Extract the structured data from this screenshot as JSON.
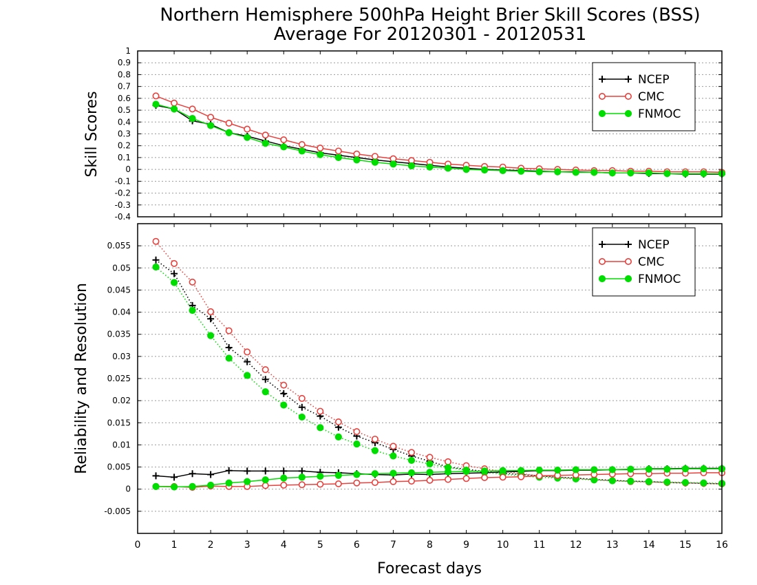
{
  "figure": {
    "title_line1": "Northern Hemisphere 500hPa Height Brier Skill Scores (BSS)",
    "title_line2": "Average For 20120301 - 20120531",
    "xlabel": "Forecast days"
  },
  "colors": {
    "NCEP": "#000000",
    "CMC": "#e8403c",
    "FNMOC": "#00dd00",
    "grid": "#999999"
  },
  "chart_data": [
    {
      "type": "line",
      "panel": "top",
      "ylabel": "Skill Scores",
      "xlim": [
        0,
        16
      ],
      "ylim": [
        -0.4,
        1
      ],
      "xticks": [
        0,
        1,
        2,
        3,
        4,
        5,
        6,
        7,
        8,
        9,
        10,
        11,
        12,
        13,
        14,
        15,
        16
      ],
      "yticks": [
        -0.4,
        -0.3,
        -0.2,
        -0.1,
        0,
        0.1,
        0.2,
        0.3,
        0.4,
        0.5,
        0.6,
        0.7,
        0.8,
        0.9,
        1
      ],
      "ytick_labels": [
        "-0.4",
        "-0.3",
        "-0.2",
        "-0.1",
        "0",
        "0.1",
        "0.2",
        "0.3",
        "0.4",
        "0.5",
        "0.6",
        "0.7",
        "0.8",
        "0.9",
        "1"
      ],
      "grid": true,
      "legend": "top-right",
      "x": [
        0.5,
        1,
        1.5,
        2,
        2.5,
        3,
        3.5,
        4,
        4.5,
        5,
        5.5,
        6,
        6.5,
        7,
        7.5,
        8,
        8.5,
        9,
        9.5,
        10,
        10.5,
        11,
        11.5,
        12,
        12.5,
        13,
        13.5,
        14,
        14.5,
        15,
        15.5,
        16
      ],
      "series": [
        {
          "name": "NCEP",
          "style": "solid",
          "marker": "plus",
          "values": [
            0.54,
            0.51,
            0.41,
            0.38,
            0.31,
            0.28,
            0.24,
            0.2,
            0.17,
            0.14,
            0.12,
            0.1,
            0.08,
            0.065,
            0.05,
            0.035,
            0.02,
            0.01,
            0.0,
            -0.005,
            -0.01,
            -0.015,
            -0.02,
            -0.02,
            -0.025,
            -0.03,
            -0.03,
            -0.035,
            -0.035,
            -0.04,
            -0.04,
            -0.04
          ]
        },
        {
          "name": "CMC",
          "style": "solid",
          "marker": "open-circle",
          "values": [
            0.62,
            0.56,
            0.51,
            0.44,
            0.39,
            0.34,
            0.29,
            0.25,
            0.21,
            0.18,
            0.155,
            0.13,
            0.11,
            0.09,
            0.075,
            0.06,
            0.045,
            0.035,
            0.025,
            0.02,
            0.01,
            0.005,
            0.0,
            -0.005,
            -0.01,
            -0.01,
            -0.015,
            -0.015,
            -0.02,
            -0.02,
            -0.02,
            -0.025
          ]
        },
        {
          "name": "FNMOC",
          "style": "solid",
          "marker": "filled-circle",
          "values": [
            0.55,
            0.51,
            0.43,
            0.37,
            0.31,
            0.27,
            0.22,
            0.19,
            0.155,
            0.125,
            0.1,
            0.08,
            0.06,
            0.045,
            0.03,
            0.02,
            0.01,
            0.0,
            -0.005,
            -0.01,
            -0.015,
            -0.02,
            -0.02,
            -0.025,
            -0.025,
            -0.03,
            -0.03,
            -0.03,
            -0.035,
            -0.035,
            -0.035,
            -0.035
          ]
        }
      ]
    },
    {
      "type": "line",
      "panel": "bottom",
      "ylabel": "Reliability and Resolution",
      "xlim": [
        0,
        16
      ],
      "ylim": [
        -0.01,
        0.06
      ],
      "xticks": [
        0,
        1,
        2,
        3,
        4,
        5,
        6,
        7,
        8,
        9,
        10,
        11,
        12,
        13,
        14,
        15,
        16
      ],
      "yticks": [
        -0.005,
        0,
        0.005,
        0.01,
        0.015,
        0.02,
        0.025,
        0.03,
        0.035,
        0.04,
        0.045,
        0.05,
        0.055
      ],
      "ytick_labels": [
        "-0.005",
        "0",
        "0.005",
        "0.01",
        "0.015",
        "0.02",
        "0.025",
        "0.03",
        "0.035",
        "0.04",
        "0.045",
        "0.05",
        "0.055"
      ],
      "grid": true,
      "legend": "top-right",
      "x": [
        0.5,
        1,
        1.5,
        2,
        2.5,
        3,
        3.5,
        4,
        4.5,
        5,
        5.5,
        6,
        6.5,
        7,
        7.5,
        8,
        8.5,
        9,
        9.5,
        10,
        10.5,
        11,
        11.5,
        12,
        12.5,
        13,
        13.5,
        14,
        14.5,
        15,
        15.5,
        16
      ],
      "series": [
        {
          "name": "NCEP",
          "style": "dotted",
          "marker": "plus",
          "values": [
            0.0518,
            0.0487,
            0.0415,
            0.0385,
            0.032,
            0.0288,
            0.0248,
            0.0216,
            0.0185,
            0.0165,
            0.014,
            0.012,
            0.0105,
            0.009,
            0.0075,
            0.0063,
            0.005,
            0.0045,
            0.004,
            0.0036,
            0.0033,
            0.003,
            0.0027,
            0.0025,
            0.0022,
            0.002,
            0.0018,
            0.0017,
            0.0015,
            0.0014,
            0.0013,
            0.0012
          ]
        },
        {
          "name": "CMC",
          "style": "dotted",
          "marker": "open-circle",
          "values": [
            0.056,
            0.051,
            0.0468,
            0.0401,
            0.0358,
            0.031,
            0.027,
            0.0235,
            0.0205,
            0.0176,
            0.0152,
            0.013,
            0.0113,
            0.0097,
            0.0083,
            0.0072,
            0.0062,
            0.0053,
            0.0046,
            0.004,
            0.0035,
            0.003,
            0.0027,
            0.0024,
            0.0021,
            0.0019,
            0.0017,
            0.0016,
            0.0015,
            0.0014,
            0.0013,
            0.0012
          ]
        },
        {
          "name": "FNMOC",
          "style": "dotted",
          "marker": "filled-circle",
          "values": [
            0.0502,
            0.0467,
            0.0404,
            0.0347,
            0.0296,
            0.0257,
            0.022,
            0.019,
            0.0163,
            0.0139,
            0.0118,
            0.0102,
            0.0087,
            0.0075,
            0.0065,
            0.0057,
            0.0049,
            0.0043,
            0.0038,
            0.0034,
            0.003,
            0.0027,
            0.0025,
            0.0023,
            0.0021,
            0.0019,
            0.0018,
            0.0017,
            0.0016,
            0.0015,
            0.0014,
            0.0013
          ]
        },
        {
          "name": "NCEP",
          "style": "solid",
          "marker": "plus",
          "values": [
            0.003,
            0.0027,
            0.0035,
            0.0033,
            0.0042,
            0.0041,
            0.0041,
            0.0041,
            0.0041,
            0.0038,
            0.0037,
            0.0035,
            0.0033,
            0.0032,
            0.0034,
            0.0033,
            0.0035,
            0.0036,
            0.0037,
            0.0039,
            0.004,
            0.0042,
            0.0042,
            0.0043,
            0.0043,
            0.0044,
            0.0044,
            0.0046,
            0.0046,
            0.0047,
            0.0047,
            0.0047
          ]
        },
        {
          "name": "CMC",
          "style": "solid",
          "marker": "open-circle",
          "values": [
            0.0006,
            0.0006,
            0.0004,
            0.0007,
            0.0006,
            0.0006,
            0.0008,
            0.0009,
            0.001,
            0.0011,
            0.0012,
            0.0014,
            0.0015,
            0.0017,
            0.0018,
            0.002,
            0.0022,
            0.0024,
            0.0026,
            0.0027,
            0.0028,
            0.003,
            0.0031,
            0.0032,
            0.0033,
            0.0034,
            0.0035,
            0.0035,
            0.0036,
            0.0036,
            0.0037,
            0.0037
          ]
        },
        {
          "name": "FNMOC",
          "style": "solid",
          "marker": "filled-circle",
          "values": [
            0.0006,
            0.0005,
            0.0006,
            0.0009,
            0.0014,
            0.0017,
            0.0021,
            0.0025,
            0.0027,
            0.0029,
            0.0031,
            0.0033,
            0.0035,
            0.0036,
            0.0037,
            0.0038,
            0.0039,
            0.004,
            0.0041,
            0.0042,
            0.0042,
            0.0043,
            0.0043,
            0.0044,
            0.0044,
            0.0044,
            0.0045,
            0.0045,
            0.0045,
            0.0046,
            0.0046,
            0.0046
          ]
        }
      ]
    }
  ]
}
